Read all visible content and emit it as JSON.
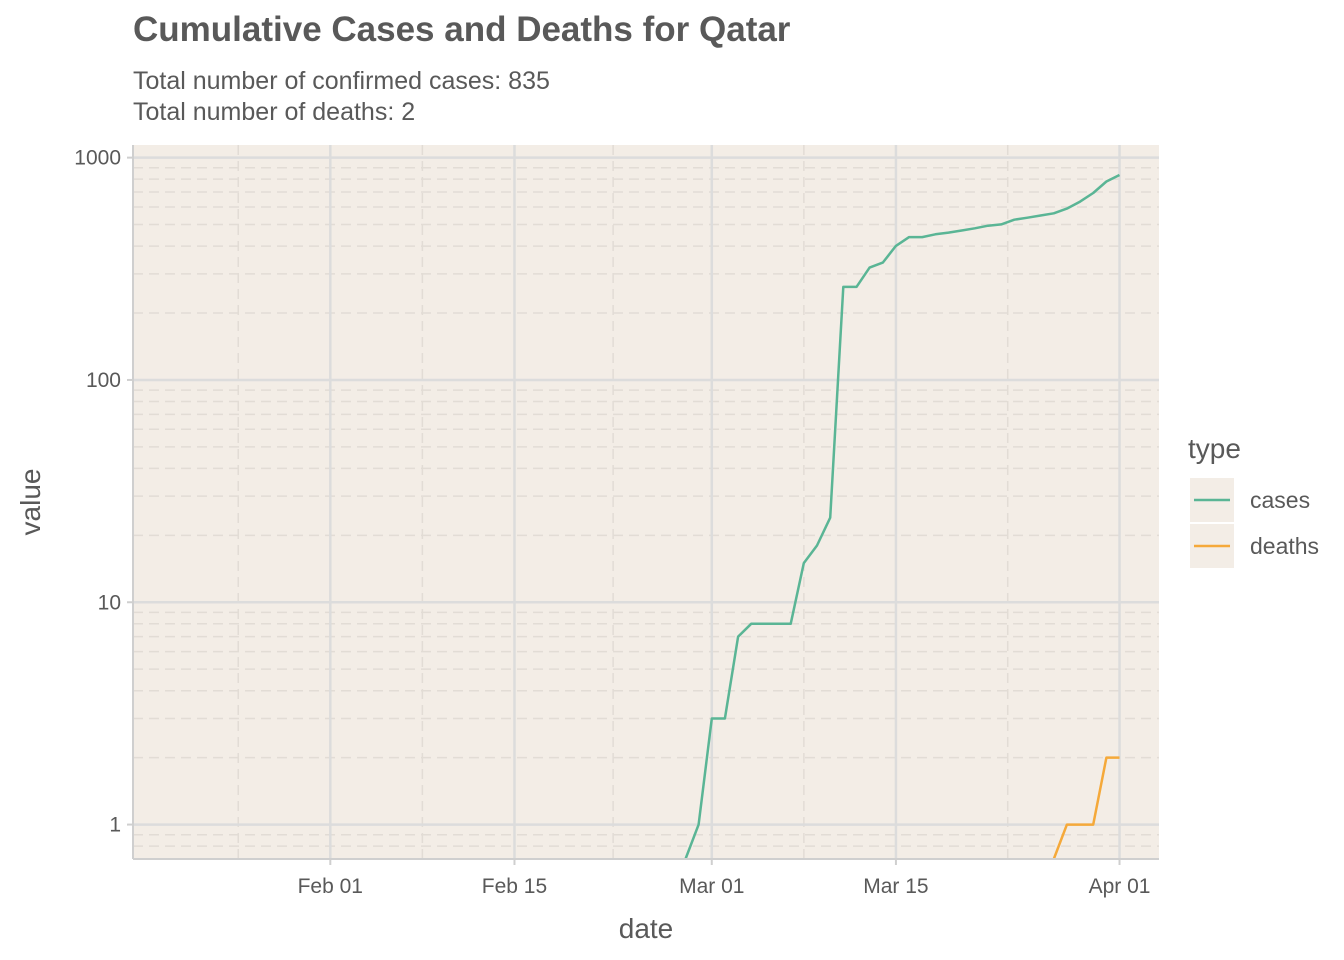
{
  "chart_data": {
    "type": "line",
    "title": "Cumulative Cases and Deaths for Qatar",
    "subtitle_lines": [
      "Total number of confirmed cases: 835",
      "Total number of deaths: 2"
    ],
    "xlabel": "date",
    "ylabel": "value",
    "x_scale": "date",
    "y_scale": "log10",
    "xlim": [
      "2020-01-17",
      "2020-04-04"
    ],
    "ylim": [
      0.7,
      1000
    ],
    "x_ticks": [
      {
        "date": "2020-02-01",
        "label": "Feb 01"
      },
      {
        "date": "2020-02-15",
        "label": "Feb 15"
      },
      {
        "date": "2020-03-01",
        "label": "Mar 01"
      },
      {
        "date": "2020-03-15",
        "label": "Mar 15"
      },
      {
        "date": "2020-04-01",
        "label": "Apr 01"
      }
    ],
    "y_ticks": [
      {
        "value": 1,
        "label": "1"
      },
      {
        "value": 10,
        "label": "10"
      },
      {
        "value": 100,
        "label": "100"
      },
      {
        "value": 1000,
        "label": "1000"
      }
    ],
    "grid": true,
    "legend": {
      "title": "type",
      "position": "right"
    },
    "background": "#f3ede6",
    "series": [
      {
        "name": "cases",
        "color": "#5ab595",
        "points": [
          [
            "2020-02-28",
            0.7
          ],
          [
            "2020-02-29",
            1
          ],
          [
            "2020-03-01",
            3
          ],
          [
            "2020-03-02",
            3
          ],
          [
            "2020-03-03",
            7
          ],
          [
            "2020-03-04",
            8
          ],
          [
            "2020-03-05",
            8
          ],
          [
            "2020-03-06",
            8
          ],
          [
            "2020-03-07",
            8
          ],
          [
            "2020-03-08",
            15
          ],
          [
            "2020-03-09",
            18
          ],
          [
            "2020-03-10",
            24
          ],
          [
            "2020-03-11",
            262
          ],
          [
            "2020-03-12",
            262
          ],
          [
            "2020-03-13",
            320
          ],
          [
            "2020-03-14",
            337
          ],
          [
            "2020-03-15",
            401
          ],
          [
            "2020-03-16",
            439
          ],
          [
            "2020-03-17",
            439
          ],
          [
            "2020-03-18",
            452
          ],
          [
            "2020-03-19",
            460
          ],
          [
            "2020-03-20",
            470
          ],
          [
            "2020-03-21",
            481
          ],
          [
            "2020-03-22",
            494
          ],
          [
            "2020-03-23",
            501
          ],
          [
            "2020-03-24",
            526
          ],
          [
            "2020-03-25",
            537
          ],
          [
            "2020-03-26",
            549
          ],
          [
            "2020-03-27",
            562
          ],
          [
            "2020-03-28",
            590
          ],
          [
            "2020-03-29",
            634
          ],
          [
            "2020-03-30",
            693
          ],
          [
            "2020-03-31",
            781
          ],
          [
            "2020-04-01",
            835
          ]
        ]
      },
      {
        "name": "deaths",
        "color": "#f5a93a",
        "points": [
          [
            "2020-03-27",
            0.7
          ],
          [
            "2020-03-28",
            1
          ],
          [
            "2020-03-29",
            1
          ],
          [
            "2020-03-30",
            1
          ],
          [
            "2020-03-31",
            2
          ],
          [
            "2020-04-01",
            2
          ]
        ]
      }
    ]
  }
}
